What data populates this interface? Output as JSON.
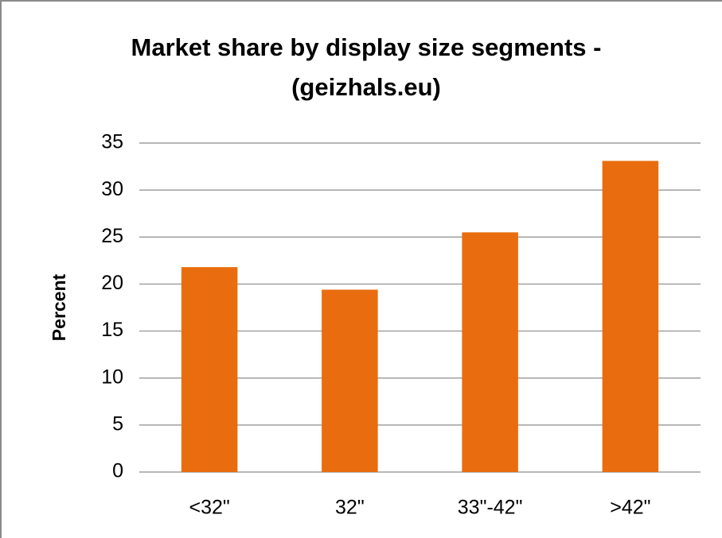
{
  "chart_data": {
    "type": "bar",
    "title": [
      "Market share by display size segments -",
      "(geizhals.eu)"
    ],
    "y_label": "Percent",
    "categories": [
      "<32\"",
      "32\"",
      "33\"-42\"",
      ">42\""
    ],
    "values": [
      21.8,
      19.4,
      25.5,
      33.1
    ],
    "color": "#e96c0e",
    "ylim": [
      0,
      35
    ],
    "yticks": [
      0,
      5,
      10,
      15,
      20,
      25,
      30,
      35
    ],
    "grid": true
  }
}
